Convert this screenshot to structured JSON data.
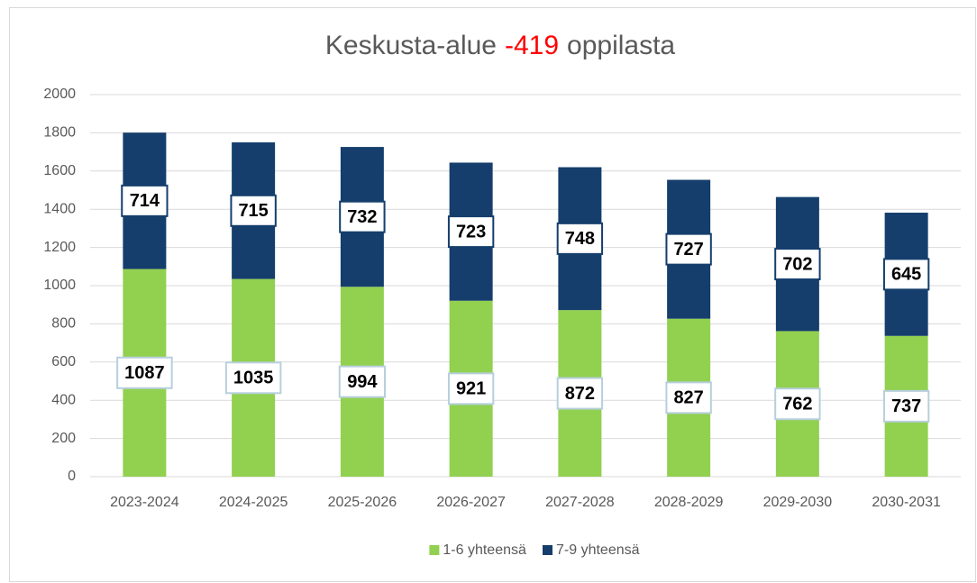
{
  "chart_data": {
    "type": "stacked_bar",
    "title_parts": [
      "Keskusta-alue",
      "-419",
      "oppilasta"
    ],
    "title_highlight_color": "#ff0000",
    "categories": [
      "2023-2024",
      "2024-2025",
      "2025-2026",
      "2026-2027",
      "2027-2028",
      "2028-2029",
      "2029-2030",
      "2030-2031"
    ],
    "series": [
      {
        "name": "1-6 yhteensä",
        "color": "#92d050",
        "label_border": "#b7cfdc",
        "values": [
          1087,
          1035,
          994,
          921,
          872,
          827,
          762,
          737
        ]
      },
      {
        "name": "7-9 yhteensä",
        "color": "#153e6c",
        "label_border": "#153e6c",
        "values": [
          714,
          715,
          732,
          723,
          748,
          727,
          702,
          645
        ]
      }
    ],
    "ylim": [
      0,
      2000
    ],
    "yticks": [
      0,
      200,
      400,
      600,
      800,
      1000,
      1200,
      1400,
      1600,
      1800,
      2000
    ],
    "grid": true,
    "legend": "bottom"
  }
}
